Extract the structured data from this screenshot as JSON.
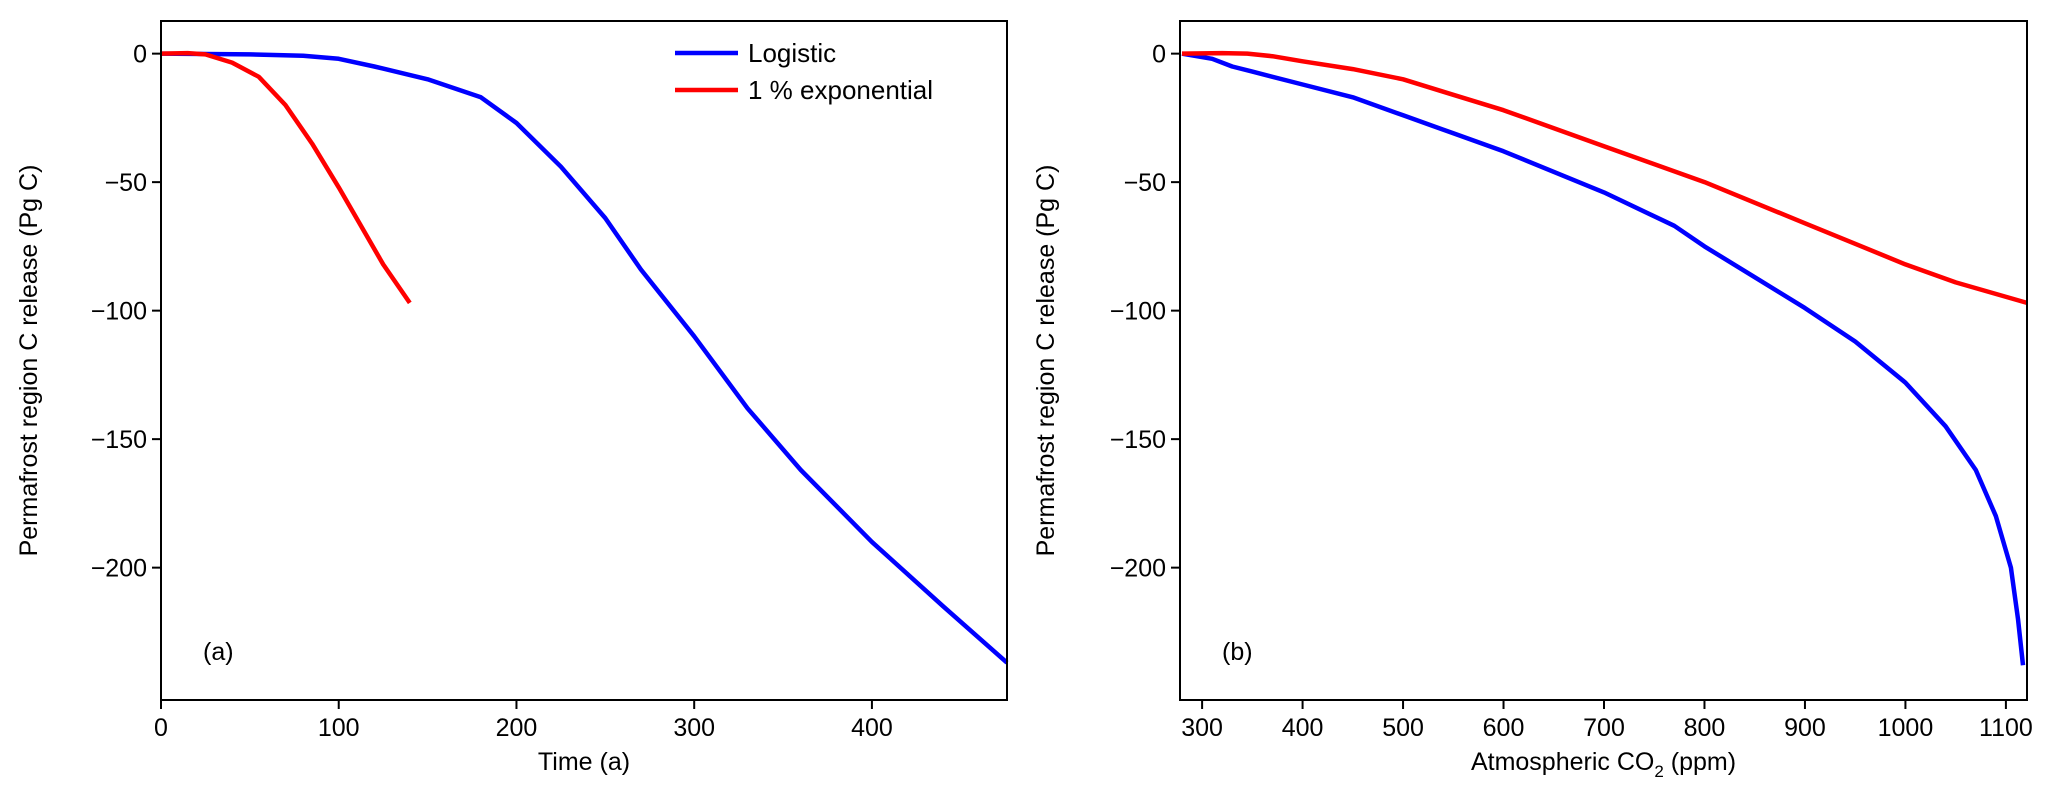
{
  "chart_data": [
    {
      "type": "line",
      "panel_label": "(a)",
      "xlabel": "Time (a)",
      "ylabel": "Permafrost region C release (Pg C)",
      "xlim": [
        0,
        476
      ],
      "ylim": [
        -251.5,
        12.7
      ],
      "xticks": [
        0,
        100,
        200,
        300,
        400
      ],
      "xtick_labels": [
        "0",
        "100",
        "200",
        "300",
        "400"
      ],
      "yticks": [
        0,
        -50,
        -100,
        -150,
        -200
      ],
      "ytick_labels": [
        "0",
        "−50",
        "−100",
        "−150",
        "−200"
      ],
      "legend": {
        "placement": "top-right",
        "entries": [
          "Logistic",
          "1 % exponential"
        ]
      },
      "series": [
        {
          "name": "Logistic",
          "color": "#0000ff",
          "x": [
            0,
            50,
            80,
            100,
            120,
            150,
            180,
            200,
            225,
            250,
            270,
            300,
            330,
            360,
            400,
            440,
            476
          ],
          "y": [
            0,
            -0.3,
            -0.8,
            -2,
            -5,
            -10,
            -17,
            -27,
            -44,
            -64,
            -84,
            -110,
            -138,
            -162,
            -190,
            -215,
            -237
          ]
        },
        {
          "name": "1 % exponential",
          "color": "#ff0000",
          "x": [
            0,
            15,
            25,
            40,
            55,
            70,
            85,
            100,
            115,
            125,
            140
          ],
          "y": [
            0,
            0.2,
            -0.3,
            -3.5,
            -9,
            -20,
            -35,
            -52,
            -70,
            -82,
            -97
          ]
        }
      ]
    },
    {
      "type": "line",
      "panel_label": "(b)",
      "xlabel": "Atmospheric CO",
      "xlabel_sub": "2",
      "xlabel_suffix": " (ppm)",
      "ylabel": "Permafrost region C release (Pg C)",
      "xlim": [
        278,
        1121
      ],
      "ylim": [
        -251.5,
        12.7
      ],
      "xticks": [
        300,
        400,
        500,
        600,
        700,
        800,
        900,
        1000,
        1100
      ],
      "xtick_labels": [
        "300",
        "400",
        "500",
        "600",
        "700",
        "800",
        "900",
        "1000",
        "1100"
      ],
      "yticks": [
        0,
        -50,
        -100,
        -150,
        -200
      ],
      "ytick_labels": [
        "0",
        "−50",
        "−100",
        "−150",
        "−200"
      ],
      "series": [
        {
          "name": "Logistic",
          "color": "#0000ff",
          "x": [
            280,
            310,
            330,
            350,
            400,
            450,
            500,
            550,
            600,
            700,
            770,
            800,
            850,
            900,
            950,
            1000,
            1040,
            1070,
            1090,
            1105,
            1112,
            1117
          ],
          "y": [
            0,
            -2,
            -5,
            -7,
            -12,
            -17,
            -24,
            -31,
            -38,
            -54,
            -67,
            -75,
            -87,
            -99,
            -112,
            -128,
            -145,
            -162,
            -180,
            -200,
            -220,
            -238
          ]
        },
        {
          "name": "1 % exponential",
          "color": "#ff0000",
          "x": [
            280,
            320,
            345,
            370,
            400,
            450,
            500,
            550,
            600,
            700,
            800,
            900,
            950,
            1000,
            1050,
            1121
          ],
          "y": [
            0,
            0.2,
            0,
            -1,
            -3,
            -6,
            -10,
            -16,
            -22,
            -36,
            -50,
            -66,
            -74,
            -82,
            -89,
            -97
          ]
        }
      ]
    }
  ]
}
